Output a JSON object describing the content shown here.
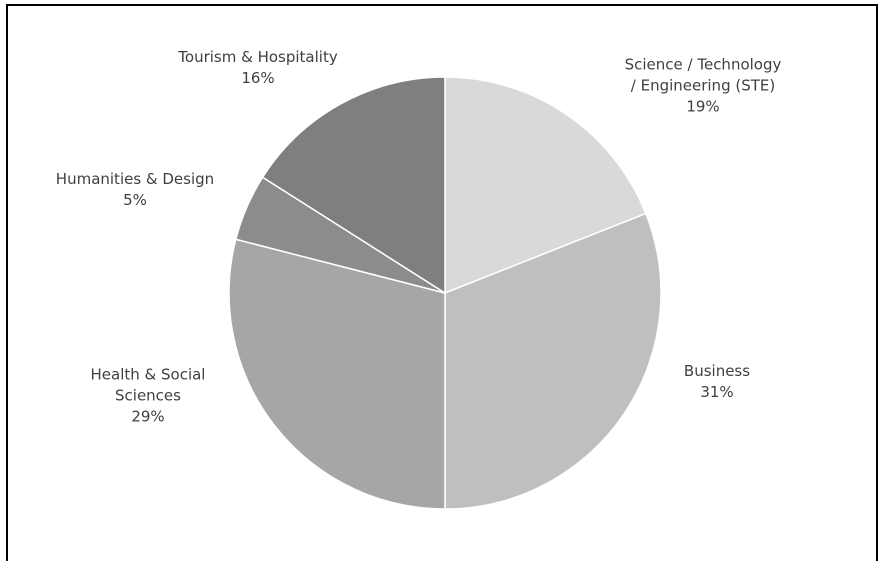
{
  "chart_data": {
    "type": "pie",
    "title": "",
    "slices": [
      {
        "label_lines": [
          "Science / Technology",
          "/ Engineering (STE)"
        ],
        "percent_label": "19%",
        "value": 19,
        "color": "#d9d9d9"
      },
      {
        "label_lines": [
          "Business"
        ],
        "percent_label": "31%",
        "value": 31,
        "color": "#bfbfbf"
      },
      {
        "label_lines": [
          "Health & Social",
          "Sciences"
        ],
        "percent_label": "29%",
        "value": 29,
        "color": "#a6a6a6"
      },
      {
        "label_lines": [
          "Humanities & Design"
        ],
        "percent_label": "5%",
        "value": 5,
        "color": "#8c8c8c"
      },
      {
        "label_lines": [
          "Tourism & Hospitality"
        ],
        "percent_label": "16%",
        "value": 16,
        "color": "#7f7f7f"
      }
    ],
    "start": "top",
    "direction": "clockwise",
    "slice_border_color": "#ffffff"
  }
}
